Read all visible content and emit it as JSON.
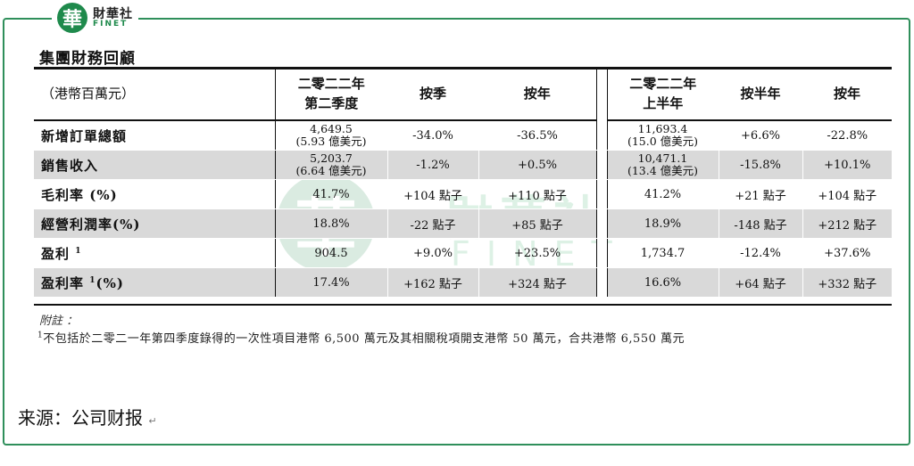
{
  "logo": {
    "badge_char": "華",
    "name_cn": "財華社",
    "name_en": "FINET"
  },
  "watermark": {
    "badge_char": "華",
    "name_cn": "財華社",
    "name_en": "FINET"
  },
  "section_title": "集團財務回顧",
  "table": {
    "unit_label": "（港幣百萬元）",
    "headers": {
      "q2_line1": "二零二二年",
      "q2_line2": "第二季度",
      "qoq": "按季",
      "yoy_q": "按年",
      "h1_line1": "二零二二年",
      "h1_line2": "上半年",
      "hoh": "按半年",
      "yoy_h": "按年"
    },
    "rows": [
      {
        "label": "新增訂單總額",
        "sup": "",
        "suffix": "",
        "q2": "4,649.5",
        "q2_sub": "(5.93 億美元)",
        "qoq": "-34.0%",
        "yoy_q": "-36.5%",
        "h1": "11,693.4",
        "h1_sub": "(15.0 億美元)",
        "hoh": "+6.6%",
        "yoy_h": "-22.8%"
      },
      {
        "label": "銷售收入",
        "sup": "",
        "suffix": "",
        "q2": "5,203.7",
        "q2_sub": "(6.64 億美元)",
        "qoq": "-1.2%",
        "yoy_q": "+0.5%",
        "h1": "10,471.1",
        "h1_sub": "(13.4 億美元)",
        "hoh": "-15.8%",
        "yoy_h": "+10.1%"
      },
      {
        "label": "毛利率 (%)",
        "sup": "",
        "suffix": "",
        "q2": "41.7%",
        "q2_sub": "",
        "qoq": "+104 點子",
        "yoy_q": "+110 點子",
        "h1": "41.2%",
        "h1_sub": "",
        "hoh": "+21 點子",
        "yoy_h": "+104 點子"
      },
      {
        "label": "經營利潤率(%)",
        "sup": "",
        "suffix": "",
        "q2": "18.8%",
        "q2_sub": "",
        "qoq": "-22 點子",
        "yoy_q": "+85 點子",
        "h1": "18.9%",
        "h1_sub": "",
        "hoh": "-148 點子",
        "yoy_h": "+212 點子"
      },
      {
        "label": "盈利",
        "sup": "1",
        "suffix": "",
        "q2": "904.5",
        "q2_sub": "",
        "qoq": "+9.0%",
        "yoy_q": "+23.5%",
        "h1": "1,734.7",
        "h1_sub": "",
        "hoh": "-12.4%",
        "yoy_h": "+37.6%"
      },
      {
        "label": "盈利率",
        "sup": "1",
        "suffix": "(%)",
        "q2": "17.4%",
        "q2_sub": "",
        "qoq": "+162 點子",
        "yoy_q": "+324 點子",
        "h1": "16.6%",
        "h1_sub": "",
        "hoh": "+64 點子",
        "yoy_h": "+332 點子"
      }
    ]
  },
  "notes": {
    "title": "附註 ：",
    "footnote_mark": "1",
    "footnote_text": "不包括於二零二一年第四季度錄得的一次性項目港幣 6,500 萬元及其相關稅項開支港幣 50 萬元，合共港幣 6,550 萬元"
  },
  "source": {
    "text": "来源：公司财报",
    "return_mark": "↵"
  }
}
